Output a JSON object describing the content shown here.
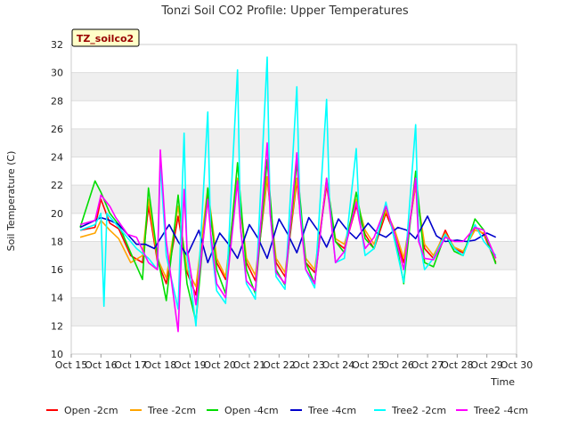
{
  "chart_data": {
    "type": "line",
    "title": "Tonzi Soil CO2 Profile: Upper Temperatures",
    "badge": "TZ_soilco2",
    "xlabel": "Time",
    "ylabel": "Soil Temperature (C)",
    "ylim": [
      10,
      32
    ],
    "xlim": [
      15,
      30
    ],
    "yticks": [
      10,
      12,
      14,
      16,
      18,
      20,
      22,
      24,
      26,
      28,
      30,
      32
    ],
    "xticks": [
      {
        "v": 15,
        "label": "Oct 15"
      },
      {
        "v": 16,
        "label": "Oct 16"
      },
      {
        "v": 17,
        "label": "Oct 17"
      },
      {
        "v": 18,
        "label": "Oct 18"
      },
      {
        "v": 19,
        "label": "Oct 19"
      },
      {
        "v": 20,
        "label": "Oct 20"
      },
      {
        "v": 21,
        "label": "Oct 21"
      },
      {
        "v": 22,
        "label": "Oct 22"
      },
      {
        "v": 23,
        "label": "Oct 23"
      },
      {
        "v": 24,
        "label": "Oct 24"
      },
      {
        "v": 25,
        "label": "Oct 25"
      },
      {
        "v": 26,
        "label": "Oct 26"
      },
      {
        "v": 27,
        "label": "Oct 27"
      },
      {
        "v": 28,
        "label": "Oct 28"
      },
      {
        "v": 29,
        "label": "Oct 29"
      },
      {
        "v": 30,
        "label": "Oct 30"
      }
    ],
    "grid": true,
    "legend_position": "bottom",
    "series": [
      {
        "name": "Open -2cm",
        "color": "#ff0000",
        "x": [
          15.3,
          15.8,
          16.0,
          16.3,
          16.6,
          17.0,
          17.4,
          17.6,
          17.9,
          18.2,
          18.6,
          18.9,
          19.2,
          19.6,
          19.9,
          20.2,
          20.6,
          20.9,
          21.2,
          21.6,
          21.9,
          22.2,
          22.6,
          22.9,
          23.2,
          23.6,
          23.9,
          24.2,
          24.6,
          24.9,
          25.2,
          25.6,
          25.9,
          26.2,
          26.6,
          26.9,
          27.2,
          27.6,
          27.9,
          28.2,
          28.6,
          28.9,
          29.3
        ],
        "y": [
          18.8,
          19.0,
          21.0,
          19.3,
          18.9,
          17.0,
          16.5,
          20.5,
          16.6,
          15.0,
          19.8,
          15.8,
          14.2,
          21.2,
          16.5,
          15.3,
          22.3,
          16.5,
          15.2,
          22.5,
          16.5,
          15.5,
          22.3,
          16.5,
          15.8,
          22.0,
          18.0,
          17.5,
          20.5,
          18.5,
          17.5,
          20.0,
          18.5,
          16.5,
          22.0,
          17.5,
          16.8,
          18.8,
          17.5,
          17.2,
          19.0,
          18.5,
          16.5
        ]
      },
      {
        "name": "Tree -2cm",
        "color": "#ffa500",
        "x": [
          15.3,
          15.8,
          16.0,
          16.3,
          16.6,
          17.0,
          17.4,
          17.6,
          17.9,
          18.2,
          18.6,
          18.9,
          19.2,
          19.6,
          19.9,
          20.2,
          20.6,
          20.9,
          21.2,
          21.6,
          21.9,
          22.2,
          22.6,
          22.9,
          23.2,
          23.6,
          23.9,
          24.2,
          24.6,
          24.9,
          25.2,
          25.6,
          25.9,
          26.2,
          26.6,
          26.9,
          27.2,
          27.6,
          27.9,
          28.2,
          28.6,
          28.9,
          29.3
        ],
        "y": [
          18.3,
          18.6,
          19.5,
          18.8,
          18.2,
          16.5,
          17.0,
          21.0,
          16.8,
          15.4,
          20.5,
          16.0,
          14.8,
          21.8,
          16.8,
          15.5,
          22.5,
          16.8,
          15.6,
          22.6,
          16.8,
          15.8,
          22.5,
          16.8,
          16.0,
          22.2,
          18.2,
          17.8,
          21.0,
          18.8,
          17.8,
          20.2,
          18.8,
          16.8,
          22.0,
          17.8,
          17.0,
          18.6,
          17.6,
          17.3,
          18.8,
          18.6,
          16.8
        ]
      },
      {
        "name": "Open -4cm",
        "color": "#00dd00",
        "x": [
          15.3,
          15.8,
          16.0,
          16.3,
          16.6,
          17.0,
          17.4,
          17.6,
          17.9,
          18.2,
          18.6,
          18.9,
          19.2,
          19.6,
          19.9,
          20.2,
          20.6,
          20.9,
          21.2,
          21.6,
          21.9,
          22.2,
          22.6,
          22.9,
          23.2,
          23.6,
          23.9,
          24.2,
          24.6,
          24.9,
          25.2,
          25.6,
          25.9,
          26.2,
          26.6,
          26.9,
          27.2,
          27.6,
          27.9,
          28.2,
          28.6,
          28.9,
          29.3
        ],
        "y": [
          19.0,
          22.3,
          21.5,
          20.0,
          19.2,
          17.2,
          15.3,
          21.8,
          17.0,
          13.8,
          21.3,
          15.0,
          12.3,
          21.8,
          16.0,
          14.3,
          23.6,
          16.0,
          14.3,
          23.8,
          16.0,
          14.9,
          23.6,
          16.5,
          15.0,
          22.5,
          18.0,
          17.2,
          21.5,
          18.2,
          17.5,
          20.5,
          18.5,
          15.0,
          23.0,
          16.5,
          16.2,
          18.5,
          17.3,
          17.0,
          19.6,
          18.8,
          16.4
        ]
      },
      {
        "name": "Tree -4cm",
        "color": "#0000cc",
        "x": [
          15.3,
          15.6,
          16.0,
          16.3,
          16.6,
          16.9,
          17.2,
          17.5,
          17.8,
          18.0,
          18.3,
          18.6,
          18.9,
          19.3,
          19.6,
          20.0,
          20.3,
          20.6,
          21.0,
          21.3,
          21.6,
          22.0,
          22.3,
          22.6,
          23.0,
          23.3,
          23.6,
          24.0,
          24.3,
          24.6,
          25.0,
          25.3,
          25.6,
          26.0,
          26.3,
          26.6,
          27.0,
          27.3,
          27.6,
          28.0,
          28.3,
          28.6,
          29.0,
          29.3
        ],
        "y": [
          19.0,
          19.3,
          19.7,
          19.5,
          19.2,
          18.5,
          17.8,
          17.8,
          17.5,
          18.2,
          19.2,
          18.0,
          17.0,
          18.8,
          16.5,
          18.6,
          17.8,
          16.8,
          19.2,
          18.2,
          16.8,
          19.6,
          18.5,
          17.2,
          19.7,
          18.8,
          17.6,
          19.6,
          18.8,
          18.2,
          19.3,
          18.6,
          18.3,
          19.0,
          18.8,
          18.2,
          19.8,
          18.4,
          18.0,
          18.1,
          18.0,
          18.1,
          18.6,
          18.3
        ]
      },
      {
        "name": "Tree2 -2cm",
        "color": "#00ffff",
        "x": [
          15.3,
          15.8,
          16.0,
          16.1,
          16.2,
          16.4,
          16.8,
          17.2,
          17.6,
          17.9,
          18.0,
          18.2,
          18.6,
          18.8,
          18.9,
          19.2,
          19.6,
          19.7,
          19.9,
          20.2,
          20.6,
          20.7,
          20.9,
          21.2,
          21.6,
          21.7,
          21.9,
          22.2,
          22.6,
          22.7,
          22.9,
          23.2,
          23.6,
          23.7,
          23.9,
          24.2,
          24.6,
          24.7,
          24.9,
          25.2,
          25.6,
          25.9,
          26.2,
          26.6,
          26.7,
          26.9,
          27.2,
          27.6,
          27.9,
          28.2,
          28.6,
          28.9,
          29.3
        ],
        "y": [
          18.8,
          19.2,
          20.0,
          13.4,
          20.0,
          19.5,
          18.5,
          17.5,
          16.8,
          16.0,
          23.5,
          17.0,
          13.2,
          25.7,
          17.0,
          12.0,
          27.2,
          18.0,
          14.5,
          13.6,
          30.2,
          19.0,
          15.0,
          13.9,
          31.1,
          20.0,
          15.5,
          14.6,
          29.0,
          20.5,
          16.0,
          14.7,
          28.1,
          20.8,
          16.5,
          16.8,
          24.6,
          19.8,
          17.0,
          17.5,
          20.8,
          18.0,
          15.1,
          26.3,
          18.5,
          16.0,
          16.8,
          18.5,
          17.5,
          17.0,
          19.2,
          18.0,
          17.0
        ]
      },
      {
        "name": "Tree2 -4cm",
        "color": "#ff00ff",
        "x": [
          15.3,
          15.8,
          16.0,
          16.3,
          16.5,
          16.9,
          17.2,
          17.6,
          17.9,
          18.0,
          18.2,
          18.6,
          18.8,
          18.9,
          19.2,
          19.6,
          19.7,
          19.9,
          20.2,
          20.6,
          20.7,
          20.9,
          21.2,
          21.6,
          21.7,
          21.9,
          22.2,
          22.6,
          22.7,
          22.9,
          23.2,
          23.6,
          23.7,
          23.9,
          24.2,
          24.6,
          24.7,
          24.9,
          25.2,
          25.6,
          25.9,
          26.2,
          26.6,
          26.7,
          26.9,
          27.2,
          27.6,
          27.9,
          28.2,
          28.6,
          28.9,
          29.3
        ],
        "y": [
          19.2,
          19.5,
          21.3,
          20.5,
          19.7,
          18.5,
          18.3,
          16.5,
          16.0,
          24.5,
          18.0,
          11.6,
          21.7,
          17.5,
          13.5,
          21.0,
          18.5,
          15.0,
          14.0,
          22.3,
          19.0,
          15.2,
          14.5,
          25.0,
          20.0,
          15.8,
          15.0,
          24.3,
          20.0,
          16.0,
          15.0,
          22.5,
          20.5,
          16.5,
          17.3,
          20.8,
          19.5,
          17.5,
          18.3,
          20.5,
          18.5,
          16.0,
          22.5,
          18.0,
          16.8,
          16.7,
          18.3,
          18.0,
          18.0,
          19.0,
          18.8,
          16.8
        ]
      }
    ]
  }
}
